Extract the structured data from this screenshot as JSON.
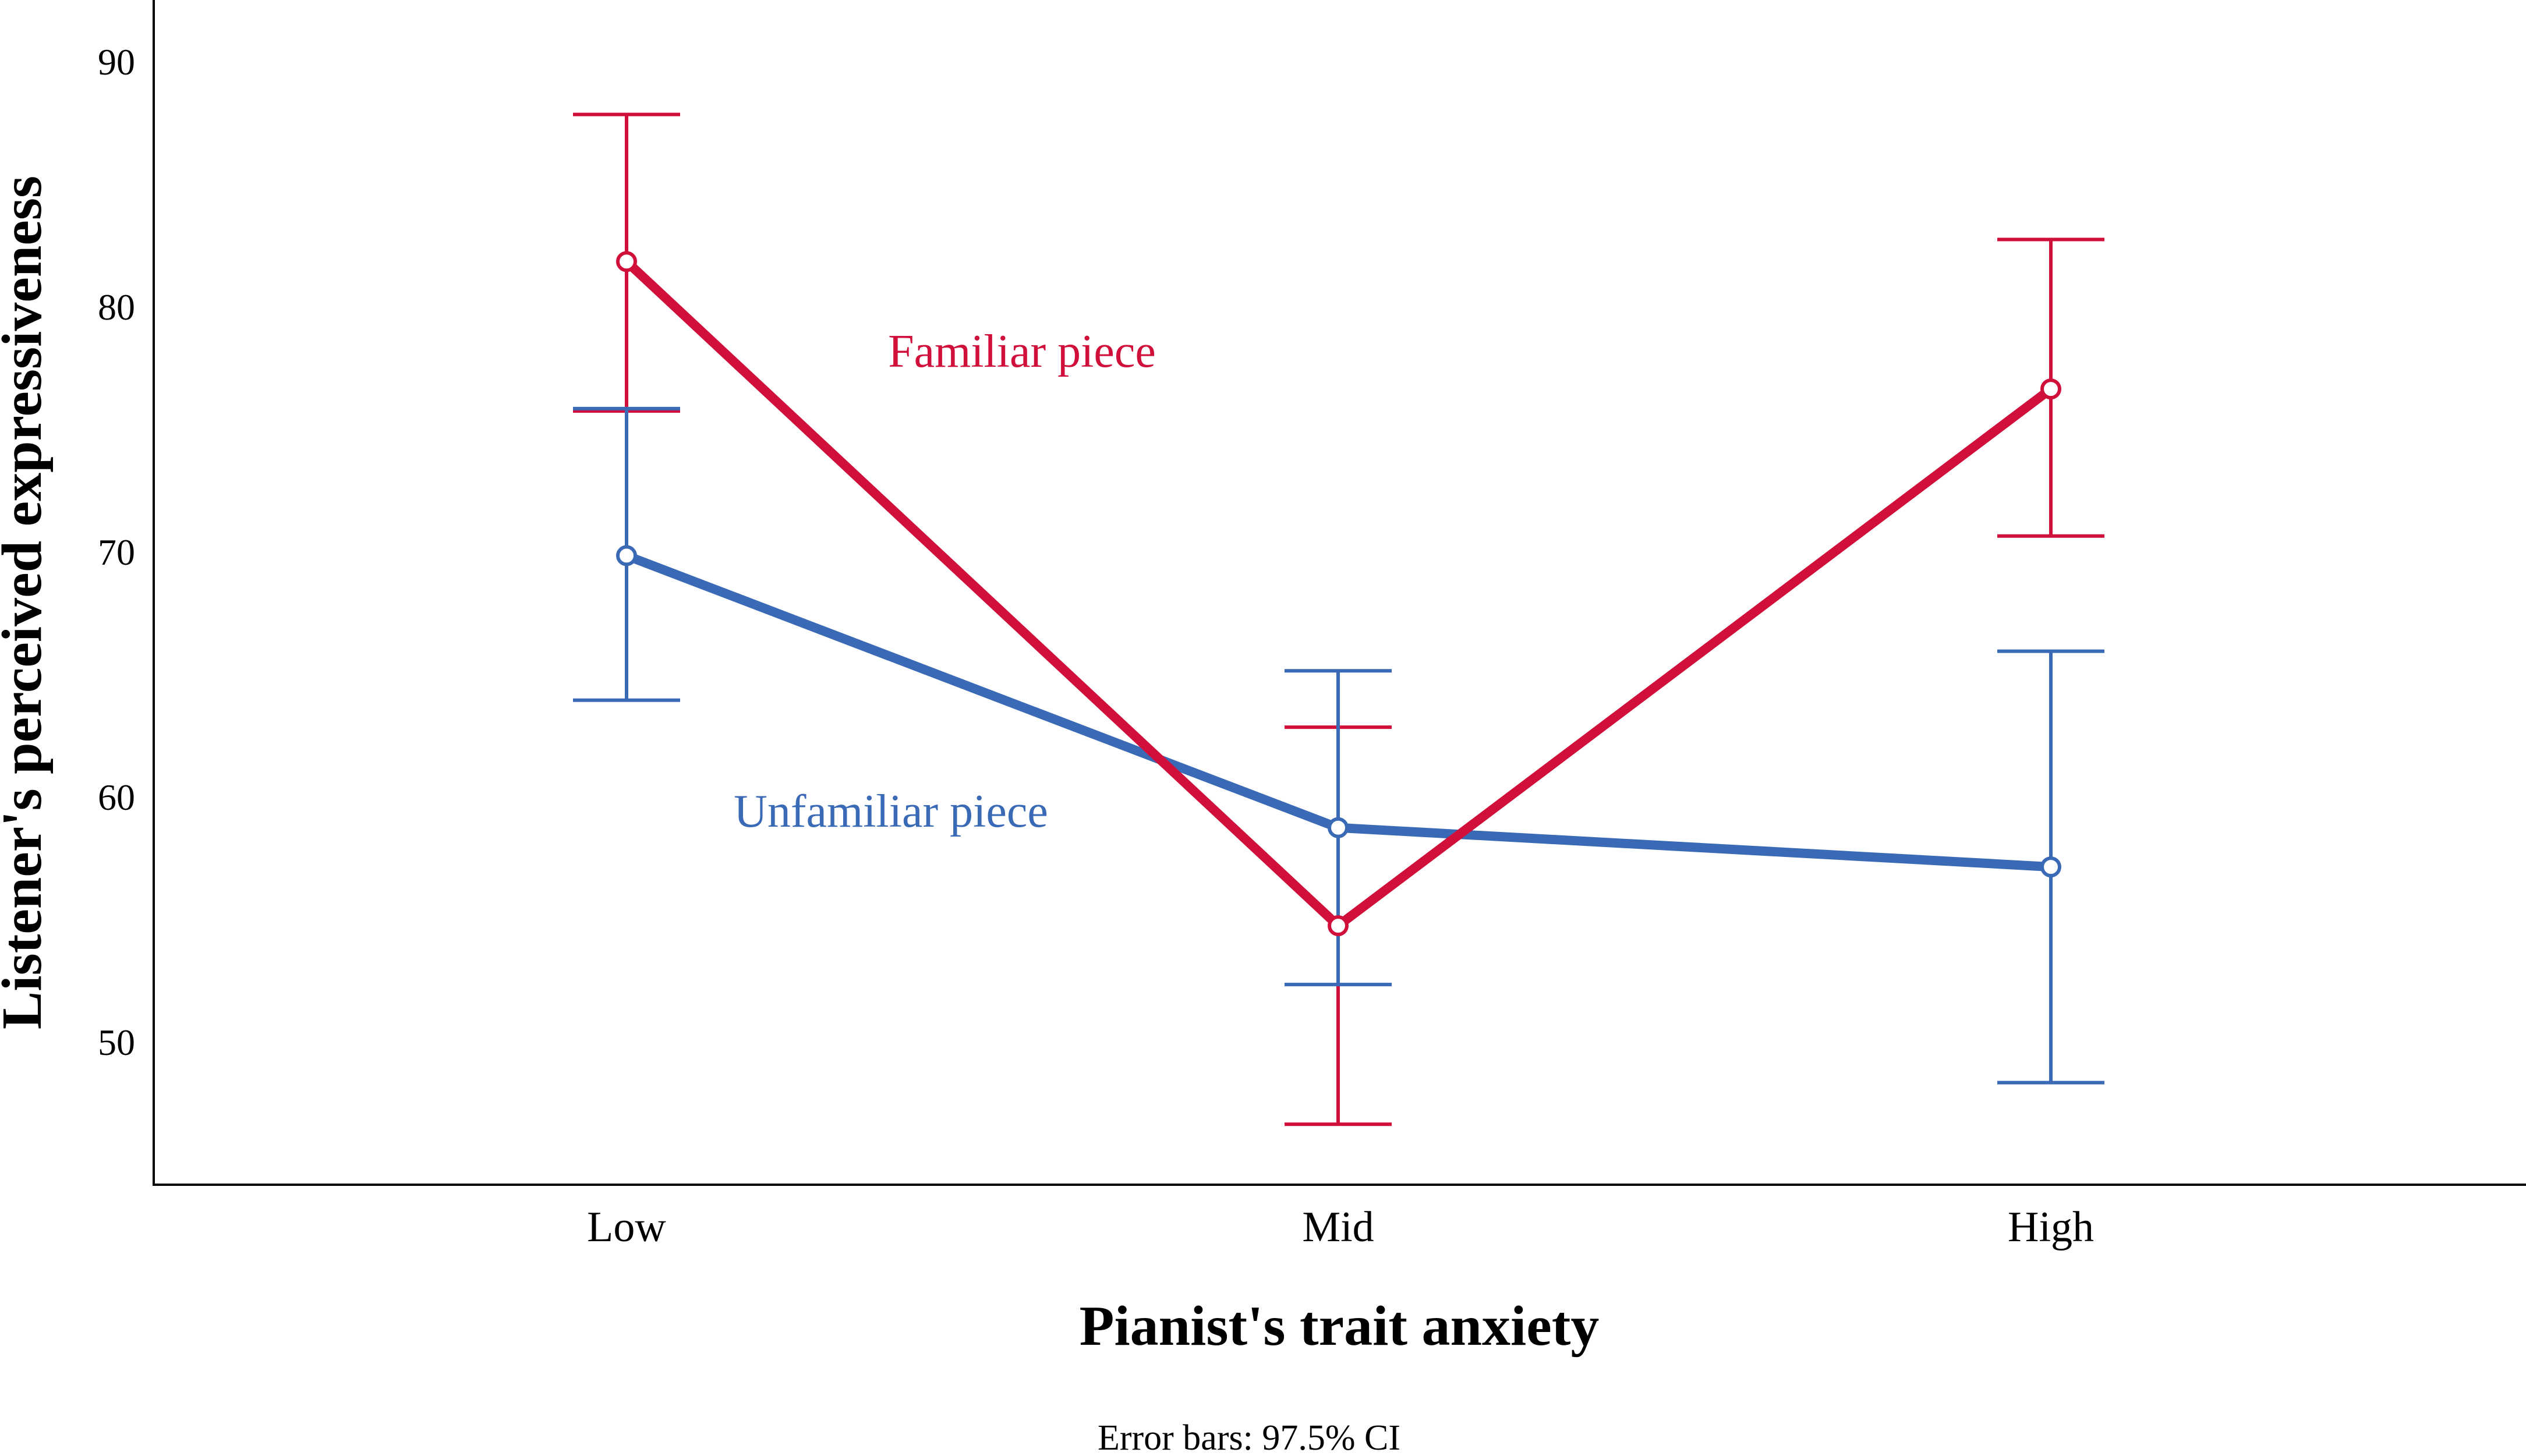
{
  "chart_data": {
    "type": "line",
    "categories": [
      "Low",
      "Mid",
      "High"
    ],
    "xlabel": "Pianist's trait anxiety",
    "ylabel": "Listener's perceived expressiveness",
    "ylim": [
      42.5,
      92.5
    ],
    "yticks": [
      50,
      60,
      70,
      80,
      90
    ],
    "grid": false,
    "legend": "inline labels",
    "series": [
      {
        "name": "Familiar piece",
        "color": "#d0103a",
        "values": [
          81.8,
          54.7,
          76.6
        ],
        "ci_lower": [
          75.7,
          46.6,
          70.6
        ],
        "ci_upper": [
          87.8,
          62.8,
          82.7
        ]
      },
      {
        "name": "Unfamiliar piece",
        "color": "#3a6ab6",
        "values": [
          69.8,
          58.7,
          57.1
        ],
        "ci_lower": [
          63.9,
          52.3,
          48.3
        ],
        "ci_upper": [
          75.8,
          65.1,
          65.9
        ]
      }
    ],
    "note": "Error bars: 97.5% CI"
  }
}
